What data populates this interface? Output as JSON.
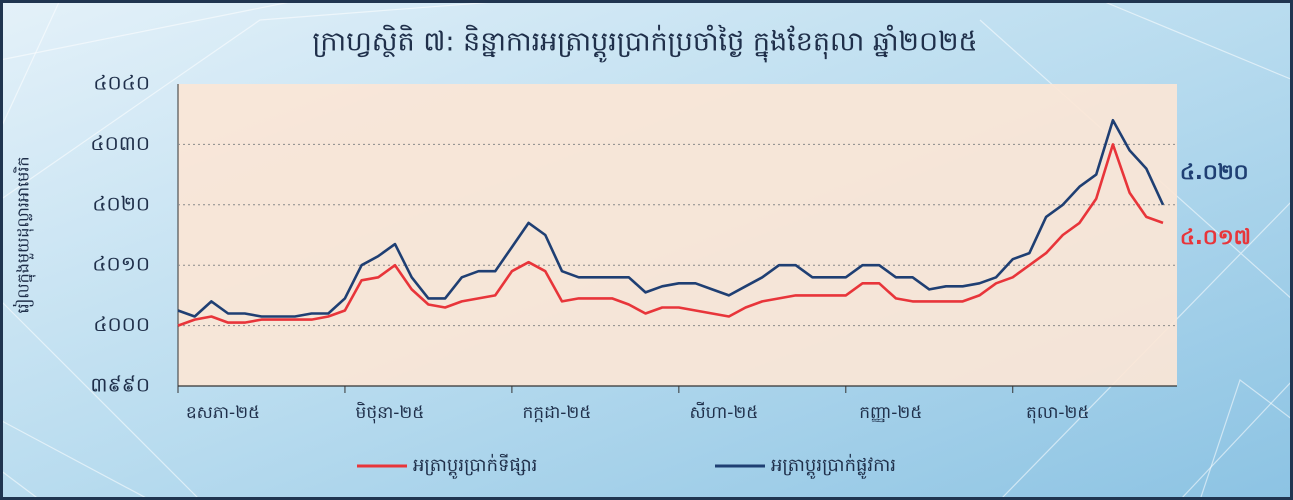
{
  "chart_data": {
    "type": "line",
    "title": "ក្រាហ្វស្ថិតិ ៧: និន្នាការអត្រាប្តូរប្រាក់ប្រចាំថ្ងៃ ក្នុងខែតុលា ឆ្នាំ២០២៥",
    "y_label": "រៀលក្នុងមួយដុល្លារអាមេរិក",
    "categories": [
      "ឧសភា-២៥",
      null,
      null,
      null,
      null,
      null,
      null,
      null,
      null,
      null,
      "មិថុនា-២៥",
      null,
      null,
      null,
      null,
      null,
      null,
      null,
      null,
      null,
      "កក្កដា-២៥",
      null,
      null,
      null,
      null,
      null,
      null,
      null,
      null,
      null,
      "សីហា-២៥",
      null,
      null,
      null,
      null,
      null,
      null,
      null,
      null,
      null,
      "កញ្ញា-២៥",
      null,
      null,
      null,
      null,
      null,
      null,
      null,
      null,
      null,
      "តុលា-២៥",
      null,
      null,
      null,
      null,
      null,
      null,
      null,
      null,
      null
    ],
    "series": [
      {
        "name": "អត្រាប្តូរប្រាក់ទីផ្សារ",
        "color": "#e8353a",
        "values": [
          4000,
          4001,
          4001.5,
          4000.5,
          4000.5,
          4001,
          4001,
          4001,
          4001,
          4001.5,
          4002.5,
          4007.5,
          4008,
          4010,
          4006,
          4003.5,
          4003,
          4004,
          4004.5,
          4005,
          4009,
          4010.5,
          4009,
          4004,
          4004.5,
          4004.5,
          4004.5,
          4003.5,
          4002,
          4003,
          4003,
          4002.5,
          4002,
          4001.5,
          4003,
          4004,
          4004.5,
          4005,
          4005,
          4005,
          4005,
          4007,
          4007,
          4004.5,
          4004,
          4004,
          4004,
          4004,
          4005,
          4007,
          4008,
          4010,
          4012,
          4015,
          4017,
          4021,
          4030,
          4022,
          4018,
          4017
        ],
        "value_labels": [
          null,
          null,
          null,
          null,
          null,
          null,
          null,
          null,
          null,
          null,
          null,
          null,
          null,
          null,
          null,
          null,
          null,
          null,
          null,
          null,
          null,
          null,
          null,
          null,
          null,
          null,
          null,
          null,
          null,
          null,
          null,
          null,
          null,
          null,
          null,
          null,
          null,
          null,
          null,
          null,
          null,
          null,
          null,
          null,
          null,
          null,
          null,
          null,
          null,
          null,
          null,
          null,
          null,
          null,
          null,
          null,
          null,
          null,
          null,
          "៤.០១៧"
        ]
      },
      {
        "name": "អត្រាប្តូរប្រាក់ផ្លូវការ",
        "color": "#1f3f73",
        "values": [
          4002.5,
          4001.5,
          4004,
          4002,
          4002,
          4001.5,
          4001.5,
          4001.5,
          4002,
          4002,
          4004.5,
          4010,
          4011.5,
          4013.5,
          4008,
          4004.5,
          4004.5,
          4008,
          4009,
          4009,
          4013,
          4017,
          4015,
          4009,
          4008,
          4008,
          4008,
          4008,
          4005.5,
          4006.5,
          4007,
          4007,
          4006,
          4005,
          4006.5,
          4008,
          4010,
          4010,
          4008,
          4008,
          4008,
          4010,
          4010,
          4008,
          4008,
          4006,
          4006.5,
          4006.5,
          4007,
          4008,
          4011,
          4012,
          4018,
          4020,
          4023,
          4025,
          4034,
          4029,
          4026,
          4020
        ],
        "value_labels": [
          null,
          null,
          null,
          null,
          null,
          null,
          null,
          null,
          null,
          null,
          null,
          null,
          null,
          null,
          null,
          null,
          null,
          null,
          null,
          null,
          null,
          null,
          null,
          null,
          null,
          null,
          null,
          null,
          null,
          null,
          null,
          null,
          null,
          null,
          null,
          null,
          null,
          null,
          null,
          null,
          null,
          null,
          null,
          null,
          null,
          null,
          null,
          null,
          null,
          null,
          null,
          null,
          null,
          null,
          null,
          null,
          null,
          null,
          null,
          "៤.០២០"
        ]
      }
    ],
    "ylim": [
      3990,
      4040
    ],
    "yticks": [
      {
        "value": 3990,
        "label": "៣៩៩០"
      },
      {
        "value": 4000,
        "label": "៤០០០"
      },
      {
        "value": 4010,
        "label": "៤០១០"
      },
      {
        "value": 4020,
        "label": "៤០២០"
      },
      {
        "value": 4030,
        "label": "៤០៣០"
      },
      {
        "value": 4040,
        "label": "៤០៤០"
      }
    ],
    "grid": true
  }
}
